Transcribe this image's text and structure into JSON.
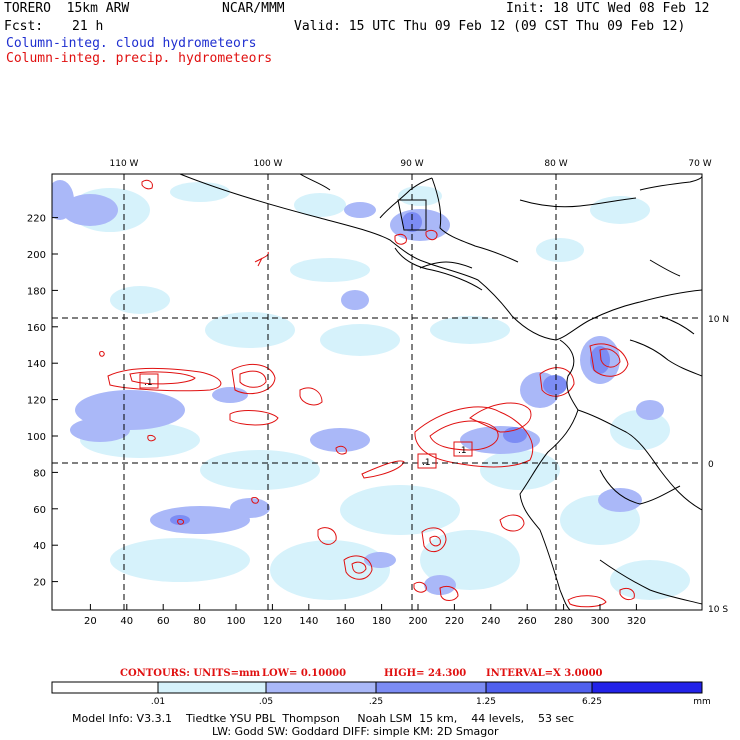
{
  "header": {
    "model": "TORERO  15km ARW",
    "org": "NCAR/MMM",
    "init": "Init: 18 UTC Wed 08 Feb 12",
    "fcst_label": "Fcst:",
    "fcst_value": "21 h",
    "valid": "Valid: 15 UTC Thu 09 Feb 12 (09 CST Thu 09 Feb 12)",
    "field1": "Column-integ. cloud hydrometeors",
    "field2": "Column-integ. precip. hydrometeors"
  },
  "colors": {
    "field1": "#1f2fd0",
    "field2": "#e01010",
    "contour": "#e01010",
    "coast": "#000000"
  },
  "axes": {
    "lon_labels": [
      "110 W",
      "100 W",
      "90 W",
      "80 W",
      "70 W"
    ],
    "lat_labels": [
      "10 N",
      "0",
      "10 S"
    ],
    "y_ticks": [
      "220",
      "200",
      "180",
      "160",
      "140",
      "120",
      "100",
      "80",
      "60",
      "40",
      "20"
    ],
    "x_ticks": [
      "20",
      "40",
      "60",
      "80",
      "100",
      "120",
      "140",
      "160",
      "180",
      "200",
      "220",
      "240",
      "260",
      "280",
      "300",
      "320"
    ]
  },
  "contour_info": {
    "units": "CONTOURS:  UNITS=mm",
    "low": "LOW= 0.10000",
    "high": "HIGH=  24.300",
    "interval": "INTERVAL=X  3.0000"
  },
  "boxes": {
    "label1": ".1",
    "label2": ".1",
    "label3": ".1"
  },
  "colorbar": {
    "unit": "mm",
    "labels": [
      ".01",
      ".05",
      ".25",
      "1.25",
      "6.25"
    ],
    "colors": [
      "#ffffff",
      "#d6f2fb",
      "#aab8f8",
      "#7c8cf4",
      "#5060ee",
      "#2222e8"
    ]
  },
  "footer": {
    "line1": "Model Info: V3.3.1    Tiedtke YSU PBL  Thompson     Noah LSM  15 km,    44 levels,    53 sec",
    "line2": "LW: Godd SW: Goddard DIFF: simple KM: 2D Smagor"
  }
}
